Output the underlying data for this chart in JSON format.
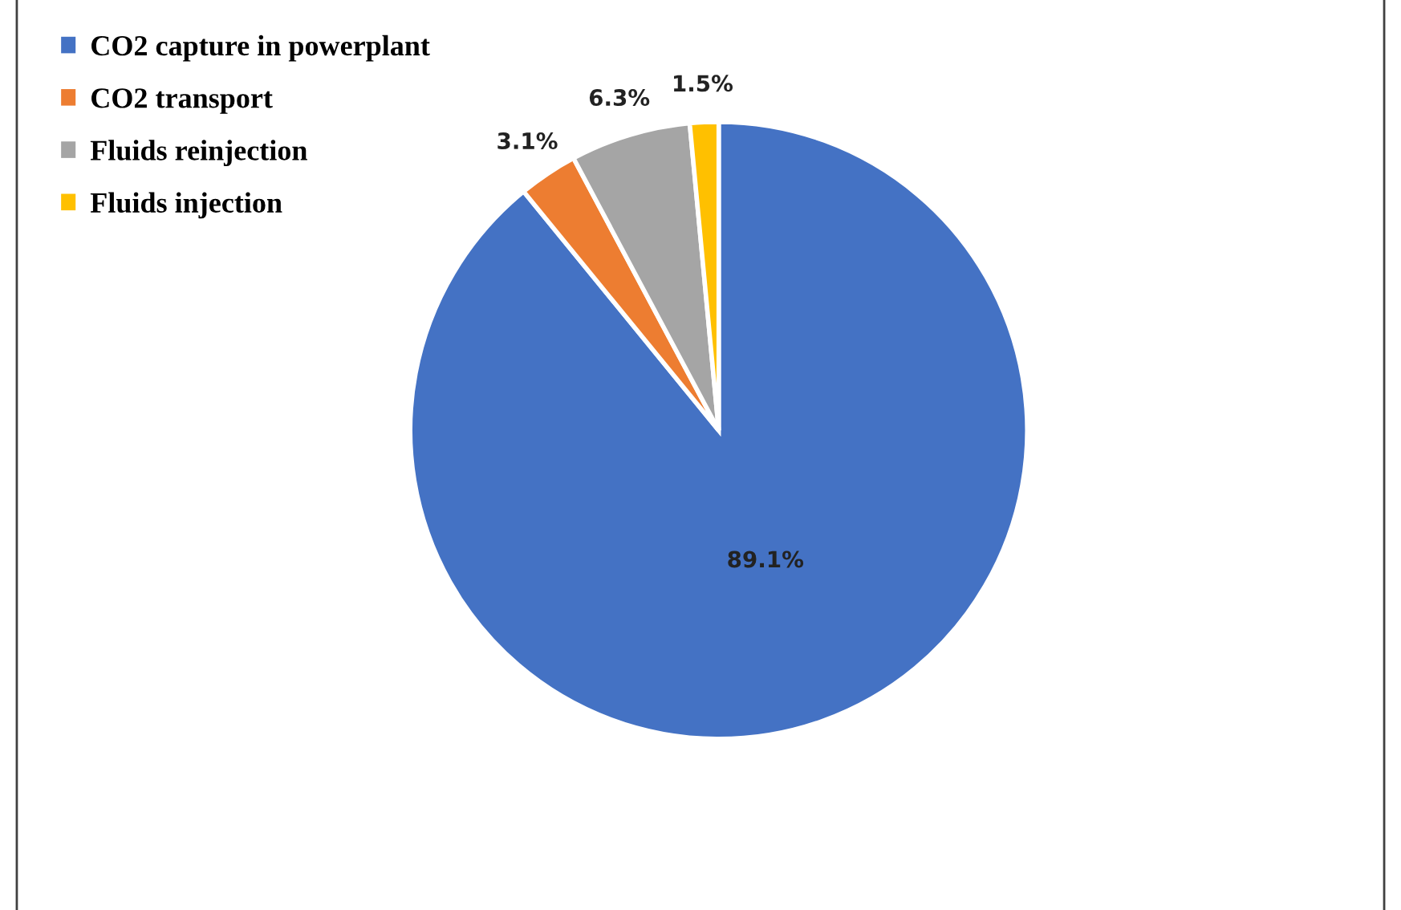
{
  "chart_data": {
    "type": "pie",
    "categories": [
      "CO2 capture in powerplant",
      "CO2 transport",
      "Fluids reinjection",
      "Fluids injection"
    ],
    "values": [
      89.1,
      3.1,
      6.3,
      1.5
    ],
    "colors": [
      "#4472c4",
      "#ed7d31",
      "#a5a5a5",
      "#ffc000"
    ],
    "value_labels": [
      "89.1%",
      "3.1%",
      "6.3%",
      "1.5%"
    ],
    "legend": "top left"
  }
}
